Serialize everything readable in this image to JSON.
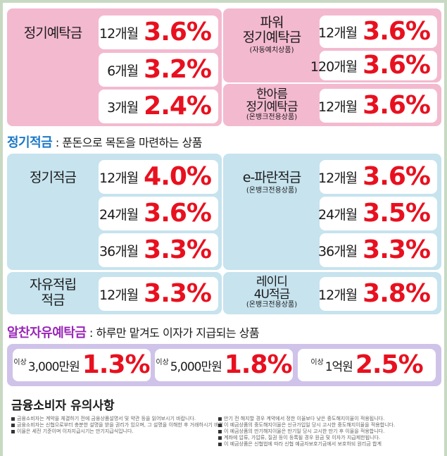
{
  "deposit": {
    "regular": {
      "name": "정기예탁금",
      "rows": [
        {
          "term": "12개월",
          "rate": "3.6%"
        },
        {
          "term": "6개월",
          "rate": "3.2%"
        },
        {
          "term": "3개월",
          "rate": "2.4%"
        }
      ]
    },
    "power": {
      "name_line1": "파워",
      "name_line2": "정기예탁금",
      "sub": "(자동예치상품)",
      "rows": [
        {
          "term": "12개월",
          "rate": "3.6%"
        },
        {
          "term": "120개월",
          "rate": "3.6%"
        }
      ]
    },
    "hanareum": {
      "name_line1": "한아름",
      "name_line2": "정기예탁금",
      "sub": "(온뱅크전용상품)",
      "rows": [
        {
          "term": "12개월",
          "rate": "3.6%"
        }
      ]
    }
  },
  "savings_section": {
    "title": "정기적금",
    "desc": ": 푼돈으로 목돈을 마련하는 상품"
  },
  "savings": {
    "regular": {
      "name": "정기적금",
      "rows": [
        {
          "term": "12개월",
          "rate": "4.0%"
        },
        {
          "term": "24개월",
          "rate": "3.6%"
        },
        {
          "term": "36개월",
          "rate": "3.3%"
        }
      ]
    },
    "epa": {
      "name": "e-파란적금",
      "sub": "(온뱅크전용상품)",
      "rows": [
        {
          "term": "12개월",
          "rate": "3.6%"
        },
        {
          "term": "24개월",
          "rate": "3.5%"
        },
        {
          "term": "36개월",
          "rate": "3.3%"
        }
      ]
    },
    "free": {
      "name_line1": "자유적립",
      "name_line2": "적금",
      "rows": [
        {
          "term": "12개월",
          "rate": "3.3%"
        }
      ]
    },
    "ready": {
      "name_line1": "레이디",
      "name_line2": "4U적금",
      "sub": "(온뱅크전용상품)",
      "rows": [
        {
          "term": "12개월",
          "rate": "3.8%"
        }
      ]
    }
  },
  "alchan_section": {
    "title": "알찬자유예탁금",
    "desc": ": 하루만 맡겨도 이자가 지급되는 상품"
  },
  "alchan": [
    {
      "amount": "3,000만원",
      "above": "이상",
      "rate": "1.3%"
    },
    {
      "amount": "5,000만원",
      "above": "이상",
      "rate": "1.8%"
    },
    {
      "amount": "1억원",
      "above": "이상",
      "rate": "2.5%"
    }
  ],
  "notice": {
    "title": "금융소비자 유의사항",
    "left": [
      "금융소비자는 계약을 체결하기 전에 금융상품설명서 및 약관 등을 읽어보시기 바랍니다.",
      "금융소비자는 신협으로부터 충분한 설명을 받을 권리가 있으며, 그 설명을 이해한 후 거래하시기 바랍니다.",
      "이율은 세전 기준이며 이자지급시기는 만기지급식입니다."
    ],
    "right": [
      "만기 전 해지할 경우 계약에서 정한 이율보다 낮은 중도해지이율이 적용됩니다.",
      "이 예금상품의 중도해지이율은 신규가입일 당시 고시한 중도해지이율을 적용합니다.",
      "이 예금상품의 만기해지이율은 만기일 당시 고시한 만기 후 이율을 적용합니다.",
      "계좌에 압류, 가압류, 질권 등이 등록될 경우 원금 및 이자가 지급제한됩니다.",
      "이 예금상품은 신협법에 따라 신협 예금자보호기금에서 보호하되 원리금 합계"
    ]
  }
}
